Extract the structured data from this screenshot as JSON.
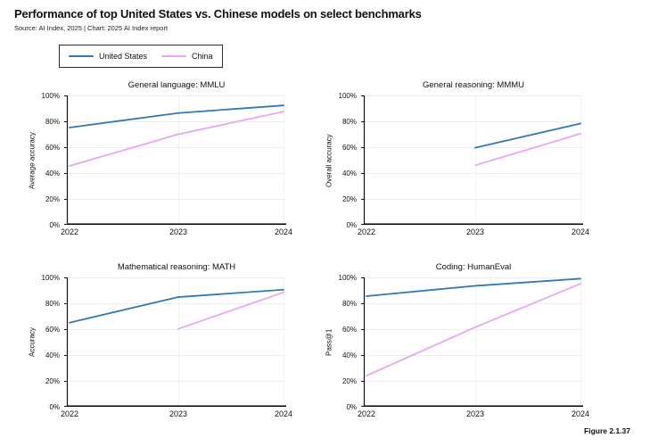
{
  "header": {
    "title": "Performance of top United States vs. Chinese models on select benchmarks",
    "source": "Source: AI Index, 2025 | Chart: 2025 AI Index report"
  },
  "legend": {
    "items": [
      {
        "label": "United States",
        "color": "#3279b5"
      },
      {
        "label": "China",
        "color": "#e5a8f0"
      }
    ]
  },
  "figure_label": "Figure 2.1.37",
  "colors": {
    "us": "#3279b5",
    "china": "#e5a8f0",
    "grid_h": "#ededed",
    "grid_v": "#f1f1f1",
    "axis": "#111111"
  },
  "chart_data": [
    {
      "type": "line",
      "title": "General language: MMLU",
      "ylabel": "Average accuracy",
      "x": [
        "2022",
        "2023",
        "2024"
      ],
      "ylim": [
        0,
        100
      ],
      "yticks": [
        "0%",
        "20%",
        "40%",
        "60%",
        "80%",
        "100%"
      ],
      "grid": true,
      "legend_position": "top-left-outside",
      "series": [
        {
          "name": "United States",
          "color": "#3279b5",
          "values": [
            75.2,
            86.4,
            92.3
          ]
        },
        {
          "name": "China",
          "color": "#e5a8f0",
          "values": [
            45.5,
            70.0,
            87.5
          ]
        }
      ]
    },
    {
      "type": "line",
      "title": "General reasoning: MMMU",
      "ylabel": "Overall accuracy",
      "x": [
        "2022",
        "2023",
        "2024"
      ],
      "ylim": [
        0,
        100
      ],
      "yticks": [
        "0%",
        "20%",
        "40%",
        "60%",
        "80%",
        "100%"
      ],
      "grid": true,
      "legend_position": "top-left-outside",
      "series": [
        {
          "name": "United States",
          "color": "#3279b5",
          "values": [
            null,
            59.6,
            78.3
          ]
        },
        {
          "name": "China",
          "color": "#e5a8f0",
          "values": [
            null,
            46.0,
            70.4
          ]
        }
      ]
    },
    {
      "type": "line",
      "title": "Mathematical reasoning: MATH",
      "ylabel": "Accuracy",
      "x": [
        "2022",
        "2023",
        "2024"
      ],
      "ylim": [
        0,
        100
      ],
      "yticks": [
        "0%",
        "20%",
        "40%",
        "60%",
        "80%",
        "100%"
      ],
      "grid": true,
      "legend_position": "top-left-outside",
      "series": [
        {
          "name": "United States",
          "color": "#3279b5",
          "values": [
            65.0,
            84.8,
            90.5
          ]
        },
        {
          "name": "China",
          "color": "#e5a8f0",
          "values": [
            null,
            60.2,
            88.5
          ]
        }
      ]
    },
    {
      "type": "line",
      "title": "Coding: HumanEval",
      "ylabel": "Pass@1",
      "x": [
        "2022",
        "2023",
        "2024"
      ],
      "ylim": [
        0,
        100
      ],
      "yticks": [
        "0%",
        "20%",
        "40%",
        "60%",
        "80%",
        "100%"
      ],
      "grid": true,
      "legend_position": "top-left-outside",
      "series": [
        {
          "name": "United States",
          "color": "#3279b5",
          "values": [
            85.5,
            93.5,
            99.0
          ]
        },
        {
          "name": "China",
          "color": "#e5a8f0",
          "values": [
            24.0,
            61.5,
            95.1
          ]
        }
      ]
    }
  ]
}
